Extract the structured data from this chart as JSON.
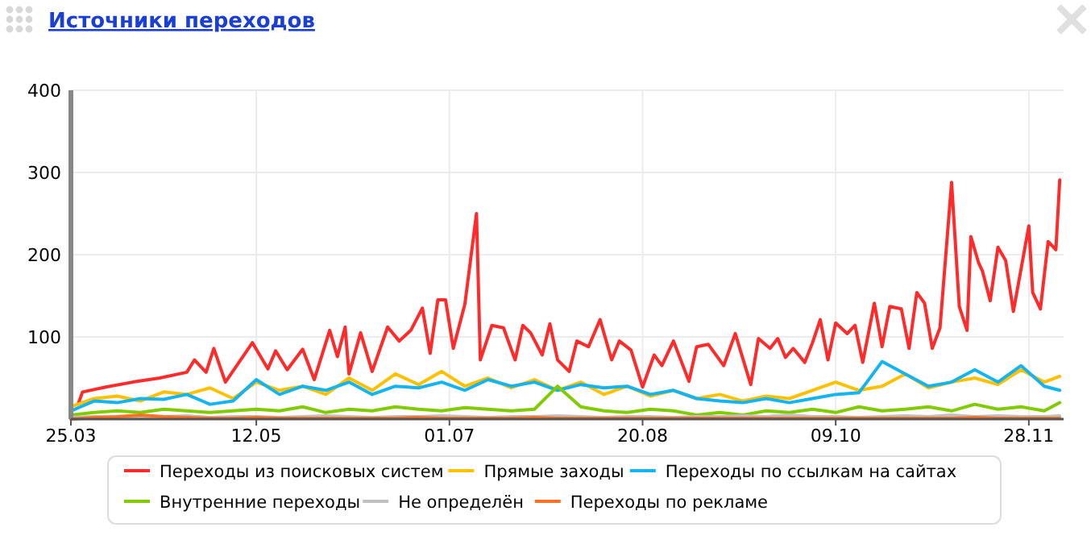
{
  "chart_data": {
    "type": "line",
    "title": "Источники переходов",
    "xlim": [
      "--03-25",
      "--12-07"
    ],
    "ylim": [
      0,
      400
    ],
    "xticks": [
      {
        "value": "--03-25",
        "label": "25.03"
      },
      {
        "value": "--05-12",
        "label": "12.05"
      },
      {
        "value": "--07-01",
        "label": "01.07"
      },
      {
        "value": "--08-20",
        "label": "20.08"
      },
      {
        "value": "--10-09",
        "label": "09.10"
      },
      {
        "value": "--11-28",
        "label": "28.11"
      }
    ],
    "yticks": [
      100,
      200,
      300,
      400
    ],
    "grid": true,
    "legend": "bottom",
    "marker": "none",
    "line_style": "solid",
    "x": [
      "--03-25",
      "--03-31",
      "--04-06",
      "--04-12",
      "--04-18",
      "--04-24",
      "--04-30",
      "--05-06",
      "--05-12",
      "--05-18",
      "--05-24",
      "--05-30",
      "--06-05",
      "--06-11",
      "--06-17",
      "--06-23",
      "--06-29",
      "--07-05",
      "--07-11",
      "--07-17",
      "--07-23",
      "--07-29",
      "--08-04",
      "--08-10",
      "--08-16",
      "--08-22",
      "--08-28",
      "--09-03",
      "--09-09",
      "--09-15",
      "--09-21",
      "--09-27",
      "--10-03",
      "--10-09",
      "--10-15",
      "--10-21",
      "--10-27",
      "--11-02",
      "--11-08",
      "--11-14",
      "--11-20",
      "--11-26",
      "--12-02",
      "--12-06"
    ],
    "series": [
      {
        "name": "Переходы из поисковых систем",
        "color": "#ff2a2a",
        "x": [
          "--03-27",
          "--03-28",
          "--04-03",
          "--04-10",
          "--04-17",
          "--04-24",
          "--04-26",
          "--04-29",
          "--05-01",
          "--05-04",
          "--05-11",
          "--05-15",
          "--05-17",
          "--05-20",
          "--05-24",
          "--05-27",
          "--05-31",
          "--06-02",
          "--06-04",
          "--06-05",
          "--06-08",
          "--06-11",
          "--06-15",
          "--06-18",
          "--06-21",
          "--06-24",
          "--06-26",
          "--06-28",
          "--06-30",
          "--07-02",
          "--07-05",
          "--07-08",
          "--07-09",
          "--07-12",
          "--07-15",
          "--07-18",
          "--07-20",
          "--07-22",
          "--07-25",
          "--07-27",
          "--07-29",
          "--08-01",
          "--08-03",
          "--08-06",
          "--08-09",
          "--08-12",
          "--08-14",
          "--08-17",
          "--08-20",
          "--08-23",
          "--08-25",
          "--08-28",
          "--09-01",
          "--09-03",
          "--09-06",
          "--09-10",
          "--09-13",
          "--09-17",
          "--09-19",
          "--09-22",
          "--09-24",
          "--09-26",
          "--09-28",
          "--10-01",
          "--10-03",
          "--10-05",
          "--10-07",
          "--10-09",
          "--10-12",
          "--10-14",
          "--10-16",
          "--10-19",
          "--10-21",
          "--10-23",
          "--10-26",
          "--10-28",
          "--10-30",
          "--11-01",
          "--11-03",
          "--11-05",
          "--11-08",
          "--11-10",
          "--11-12",
          "--11-13",
          "--11-15",
          "--11-16",
          "--11-18",
          "--11-20",
          "--11-22",
          "--11-24",
          "--11-28",
          "--11-29",
          "--12-01",
          "--12-03",
          "--12-05",
          "--12-06"
        ],
        "values": [
          20,
          33,
          39,
          45,
          50,
          57,
          72,
          57,
          86,
          45,
          93,
          61,
          83,
          60,
          85,
          48,
          108,
          76,
          112,
          55,
          105,
          58,
          112,
          95,
          108,
          135,
          80,
          145,
          145,
          86,
          140,
          250,
          72,
          114,
          111,
          72,
          114,
          105,
          78,
          116,
          72,
          58,
          95,
          88,
          121,
          72,
          95,
          84,
          39,
          78,
          65,
          95,
          46,
          88,
          91,
          65,
          104,
          42,
          98,
          86,
          98,
          75,
          86,
          69,
          93,
          121,
          72,
          117,
          104,
          114,
          69,
          141,
          88,
          137,
          134,
          86,
          154,
          141,
          86,
          111,
          288,
          137,
          108,
          222,
          190,
          180,
          144,
          209,
          193,
          131,
          235,
          154,
          134,
          216,
          206,
          291
        ]
      },
      {
        "name": "Прямые заходы",
        "color": "#ffc000",
        "values": [
          15,
          25,
          28,
          22,
          33,
          30,
          38,
          25,
          45,
          35,
          40,
          30,
          50,
          35,
          55,
          42,
          58,
          40,
          50,
          38,
          48,
          35,
          45,
          30,
          40,
          28,
          35,
          25,
          30,
          22,
          28,
          25,
          35,
          45,
          35,
          40,
          55,
          38,
          45,
          50,
          42,
          60,
          45,
          52
        ]
      },
      {
        "name": "Переходы по ссылкам на сайтах",
        "color": "#14b4f0",
        "values": [
          10,
          22,
          20,
          25,
          24,
          30,
          18,
          22,
          48,
          30,
          40,
          35,
          45,
          30,
          40,
          38,
          45,
          35,
          48,
          40,
          45,
          35,
          42,
          38,
          40,
          30,
          35,
          25,
          22,
          20,
          25,
          20,
          25,
          30,
          32,
          70,
          55,
          40,
          45,
          60,
          45,
          65,
          40,
          35
        ]
      },
      {
        "name": "Внутренние переходы",
        "color": "#80cc00",
        "values": [
          5,
          8,
          10,
          8,
          12,
          10,
          8,
          10,
          12,
          10,
          15,
          8,
          12,
          10,
          15,
          12,
          10,
          14,
          12,
          10,
          12,
          40,
          15,
          10,
          8,
          12,
          10,
          5,
          8,
          5,
          10,
          8,
          12,
          8,
          15,
          10,
          12,
          15,
          10,
          18,
          12,
          15,
          10,
          20
        ]
      },
      {
        "name": "Не определён",
        "color": "#c0c0c0",
        "values": [
          2,
          3,
          2,
          3,
          3,
          4,
          2,
          3,
          3,
          2,
          3,
          4,
          3,
          2,
          3,
          3,
          4,
          3,
          2,
          3,
          3,
          4,
          3,
          2,
          3,
          3,
          2,
          3,
          3,
          4,
          3,
          5,
          3,
          3,
          2,
          3,
          4,
          3,
          5,
          3,
          4,
          3,
          3,
          4
        ]
      },
      {
        "name": "Переходы по рекламе",
        "color": "#ff7020",
        "values": [
          0,
          2,
          3,
          5,
          3,
          2,
          1,
          1,
          2,
          1,
          1,
          1,
          1,
          1,
          1,
          2,
          1,
          1,
          1,
          1,
          2,
          1,
          1,
          1,
          1,
          1,
          1,
          1,
          1,
          1,
          1,
          1,
          1,
          1,
          1,
          1,
          1,
          1,
          1,
          2,
          1,
          1,
          1,
          1
        ]
      }
    ]
  }
}
